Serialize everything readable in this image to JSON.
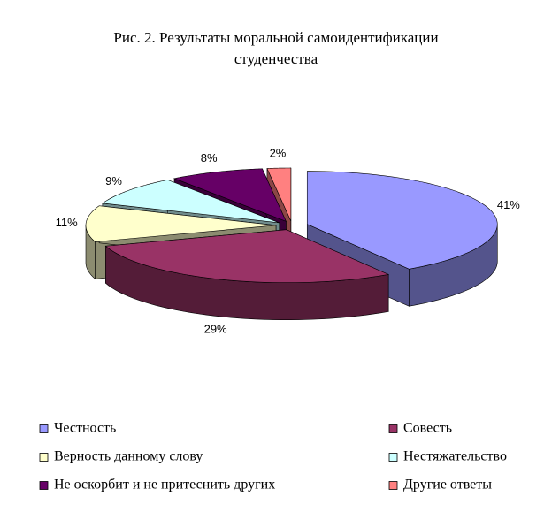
{
  "chart_data": {
    "type": "pie",
    "title": "Рис. 2. Результаты моральной самоидентификации студенчества",
    "categories": [
      "Честность",
      "Совесть",
      "Верность данному слову",
      "Нестяжательство",
      "Не оскорбит и не притеснить других",
      "Другие ответы"
    ],
    "values": [
      41,
      29,
      11,
      9,
      8,
      2
    ],
    "value_labels": [
      "41%",
      "29%",
      "11%",
      "9%",
      "8%",
      "2%"
    ],
    "colors": [
      "#9999ff",
      "#993366",
      "#ffffcc",
      "#ccffff",
      "#660066",
      "#ff8080"
    ]
  }
}
